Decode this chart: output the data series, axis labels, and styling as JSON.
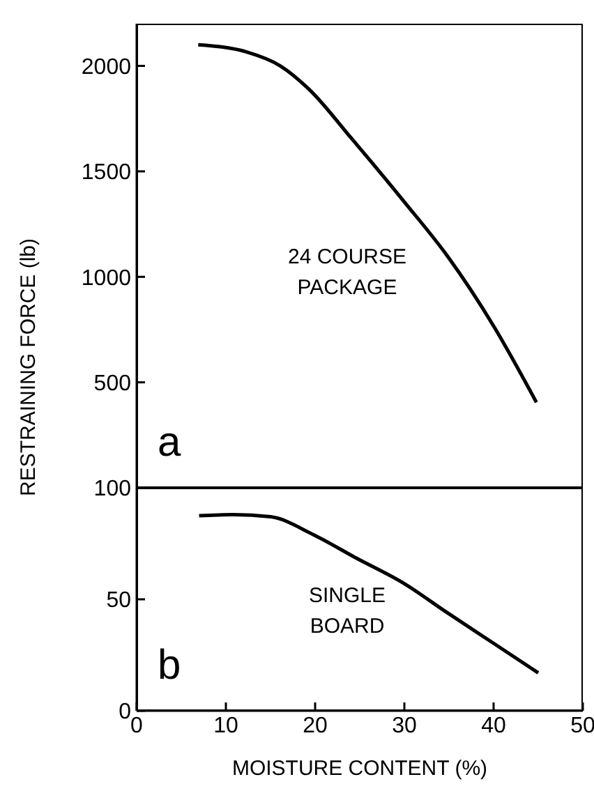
{
  "chart_data": [
    {
      "type": "line",
      "ylabel": "RESTRAINING FORCE (lb)",
      "annotations": [
        "24 COURSE PACKAGE",
        "a"
      ],
      "xlim": [
        0,
        50
      ],
      "xticks": [
        0,
        10,
        20,
        30,
        40,
        50
      ],
      "ylim": [
        0,
        2200
      ],
      "yticks": [
        500,
        1000,
        1500,
        2000
      ],
      "tick_labels": "y",
      "series": [
        {
          "color": "#000000",
          "x": [
            6.9,
            12.4,
            16.1,
            19.3,
            24.1,
            30,
            34.8,
            40.1,
            44.8
          ],
          "values": [
            2100,
            2065,
            2000,
            1890,
            1655,
            1355,
            1100,
            760,
            405
          ]
        }
      ]
    },
    {
      "type": "line",
      "xlabel": "MOISTURE CONTENT (%)",
      "annotations": [
        "SINGLE BOARD",
        "b"
      ],
      "xlim": [
        0,
        50
      ],
      "xticks": [
        0,
        10,
        20,
        30,
        40,
        50
      ],
      "ylim": [
        0,
        100
      ],
      "yticks": [
        0,
        50,
        100
      ],
      "series": [
        {
          "color": "#000000",
          "x": [
            7,
            10.8,
            15,
            19.8,
            24.6,
            30,
            34.8,
            40.1,
            45
          ],
          "values": [
            87.5,
            88,
            87,
            79,
            68.5,
            57,
            44,
            30,
            17
          ]
        }
      ]
    }
  ]
}
